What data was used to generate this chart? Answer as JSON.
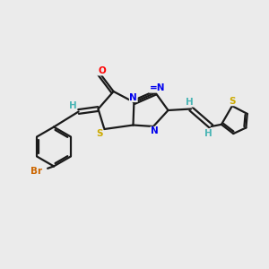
{
  "background_color": "#ebebeb",
  "bond_color": "#1a1a1a",
  "atom_colors": {
    "O": "#ff0000",
    "N": "#0000ee",
    "S": "#ccaa00",
    "Br": "#cc6600",
    "C": "#1a1a1a",
    "H": "#4ab5b5"
  },
  "font_size": 7.5,
  "lw": 1.6
}
